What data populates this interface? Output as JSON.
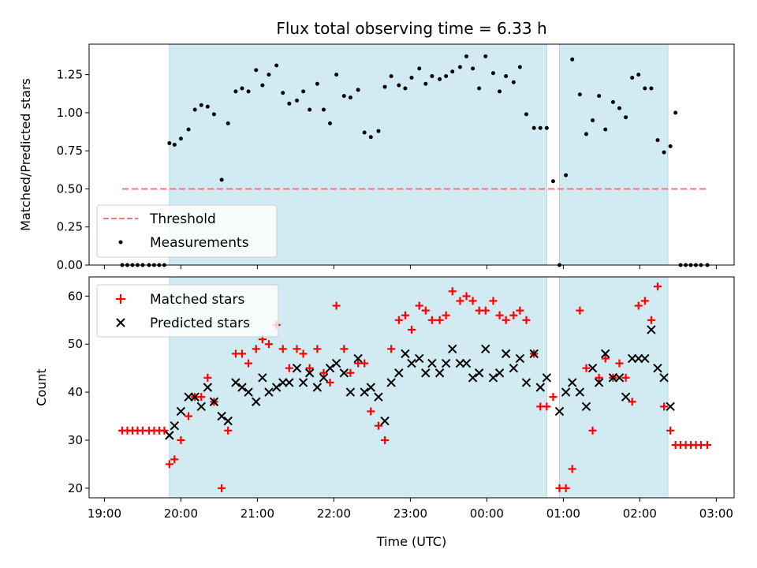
{
  "chart_data": {
    "title": "Flux total observing time = 6.33 h",
    "xlabel": "Time (UTC)",
    "x_ticks": [
      "19:00",
      "20:00",
      "21:00",
      "22:00",
      "23:00",
      "00:00",
      "01:00",
      "02:00",
      "03:00"
    ],
    "observing_windows": [
      [
        "19:51",
        "00:47"
      ],
      [
        "00:57",
        "02:22"
      ]
    ],
    "colors": {
      "window": "#add8e6",
      "threshold": "#ff7070",
      "measurement": "#000000",
      "matched": "#ff0000",
      "predicted": "#000000"
    },
    "panels": [
      {
        "id": "ratio",
        "type": "scatter",
        "ylabel": "Matched/Predicted stars",
        "ylim": [
          0,
          1.45
        ],
        "y_ticks": [
          "0.00",
          "0.25",
          "0.50",
          "0.75",
          "1.00",
          "1.25"
        ],
        "legend": {
          "position": "lower-left",
          "entries": [
            "Threshold",
            "Measurements"
          ]
        },
        "series": [
          {
            "name": "Threshold",
            "kind": "dashed-line",
            "x": [
              "19:14",
              "02:54"
            ],
            "y": [
              0.5,
              0.5
            ]
          },
          {
            "name": "Measurements",
            "kind": "dots",
            "x": [
              "19:14",
              "19:18",
              "19:22",
              "19:26",
              "19:30",
              "19:35",
              "19:39",
              "19:43",
              "19:47",
              "19:51",
              "19:55",
              "20:00",
              "20:06",
              "20:11",
              "20:16",
              "20:21",
              "20:26",
              "20:32",
              "20:37",
              "20:43",
              "20:48",
              "20:53",
              "20:59",
              "21:04",
              "21:09",
              "21:15",
              "21:20",
              "21:25",
              "21:31",
              "21:36",
              "21:41",
              "21:47",
              "21:52",
              "21:57",
              "22:02",
              "22:08",
              "22:13",
              "22:19",
              "22:24",
              "22:29",
              "22:35",
              "22:40",
              "22:45",
              "22:51",
              "22:56",
              "23:01",
              "23:07",
              "23:12",
              "23:17",
              "23:23",
              "23:28",
              "23:33",
              "23:39",
              "23:44",
              "23:49",
              "23:54",
              "23:59",
              "00:05",
              "00:10",
              "00:15",
              "00:21",
              "00:26",
              "00:31",
              "00:37",
              "00:42",
              "00:47",
              "00:52",
              "00:57",
              "01:02",
              "01:07",
              "01:13",
              "01:18",
              "01:23",
              "01:28",
              "01:33",
              "01:39",
              "01:44",
              "01:49",
              "01:54",
              "01:59",
              "02:04",
              "02:09",
              "02:14",
              "02:19",
              "02:24",
              "02:28",
              "02:32",
              "02:36",
              "02:40",
              "02:44",
              "02:48",
              "02:53"
            ],
            "y": [
              0,
              0,
              0,
              0,
              0,
              0,
              0,
              0,
              0,
              0.8,
              0.79,
              0.83,
              0.89,
              1.02,
              1.05,
              1.04,
              0.99,
              0.56,
              0.93,
              1.14,
              1.16,
              1.14,
              1.28,
              1.18,
              1.25,
              1.31,
              1.13,
              1.06,
              1.08,
              1.14,
              1.02,
              1.19,
              1.02,
              0.93,
              1.25,
              1.11,
              1.1,
              1.15,
              0.87,
              0.84,
              0.88,
              1.17,
              1.24,
              1.18,
              1.16,
              1.23,
              1.29,
              1.19,
              1.24,
              1.22,
              1.24,
              1.27,
              1.3,
              1.37,
              1.29,
              1.16,
              1.37,
              1.26,
              1.14,
              1.24,
              1.2,
              1.3,
              0.99,
              0.9,
              0.9,
              0.9,
              0.55,
              0,
              0.59,
              1.35,
              1.12,
              0.86,
              0.95,
              1.11,
              0.89,
              1.07,
              1.03,
              0.97,
              1.23,
              1.25,
              1.16,
              1.16,
              0.82,
              0.74,
              0.78,
              1.0,
              0,
              0,
              0,
              0,
              0,
              0
            ]
          }
        ]
      },
      {
        "id": "counts",
        "type": "scatter",
        "ylabel": "Count",
        "ylim": [
          18,
          64
        ],
        "y_ticks": [
          "20",
          "30",
          "40",
          "50",
          "60"
        ],
        "legend": {
          "position": "upper-left",
          "entries": [
            "Matched stars",
            "Predicted stars"
          ]
        },
        "series": [
          {
            "name": "Matched stars",
            "marker": "plus",
            "x": [
              "19:14",
              "19:18",
              "19:22",
              "19:26",
              "19:30",
              "19:35",
              "19:39",
              "19:43",
              "19:47",
              "19:51",
              "19:55",
              "20:00",
              "20:06",
              "20:11",
              "20:16",
              "20:21",
              "20:26",
              "20:32",
              "20:37",
              "20:43",
              "20:48",
              "20:53",
              "20:59",
              "21:04",
              "21:09",
              "21:15",
              "21:20",
              "21:25",
              "21:31",
              "21:36",
              "21:41",
              "21:47",
              "21:52",
              "21:57",
              "22:02",
              "22:08",
              "22:13",
              "22:19",
              "22:24",
              "22:29",
              "22:35",
              "22:40",
              "22:45",
              "22:51",
              "22:56",
              "23:01",
              "23:07",
              "23:12",
              "23:17",
              "23:23",
              "23:28",
              "23:33",
              "23:39",
              "23:44",
              "23:49",
              "23:54",
              "23:59",
              "00:05",
              "00:10",
              "00:15",
              "00:21",
              "00:26",
              "00:31",
              "00:37",
              "00:42",
              "00:47",
              "00:52",
              "00:57",
              "01:02",
              "01:07",
              "01:13",
              "01:18",
              "01:23",
              "01:28",
              "01:33",
              "01:39",
              "01:44",
              "01:49",
              "01:54",
              "01:59",
              "02:04",
              "02:09",
              "02:14",
              "02:19",
              "02:24",
              "02:28",
              "02:32",
              "02:36",
              "02:40",
              "02:44",
              "02:48",
              "02:53"
            ],
            "y": [
              32,
              32,
              32,
              32,
              32,
              32,
              32,
              32,
              32,
              25,
              26,
              30,
              35,
              39,
              39,
              43,
              38,
              20,
              32,
              48,
              48,
              46,
              49,
              51,
              50,
              54,
              49,
              45,
              49,
              48,
              45,
              49,
              44,
              42,
              58,
              49,
              44,
              46,
              46,
              36,
              33,
              30,
              49,
              55,
              56,
              53,
              58,
              57,
              55,
              55,
              56,
              61,
              59,
              60,
              59,
              57,
              57,
              59,
              56,
              55,
              56,
              57,
              55,
              48,
              37,
              37,
              39,
              20,
              20,
              24,
              57,
              45,
              32,
              43,
              47,
              43,
              46,
              43,
              38,
              58,
              59,
              55,
              62,
              37,
              32,
              29,
              29,
              29,
              29,
              29,
              29,
              29
            ]
          },
          {
            "name": "Predicted stars",
            "marker": "x",
            "x": [
              "19:51",
              "19:55",
              "20:00",
              "20:06",
              "20:11",
              "20:16",
              "20:21",
              "20:26",
              "20:32",
              "20:37",
              "20:43",
              "20:48",
              "20:53",
              "20:59",
              "21:04",
              "21:09",
              "21:15",
              "21:20",
              "21:25",
              "21:31",
              "21:36",
              "21:41",
              "21:47",
              "21:52",
              "21:57",
              "22:02",
              "22:08",
              "22:13",
              "22:19",
              "22:24",
              "22:29",
              "22:35",
              "22:40",
              "22:45",
              "22:51",
              "22:56",
              "23:01",
              "23:07",
              "23:12",
              "23:17",
              "23:23",
              "23:28",
              "23:33",
              "23:39",
              "23:44",
              "23:49",
              "23:54",
              "23:59",
              "00:05",
              "00:10",
              "00:15",
              "00:21",
              "00:26",
              "00:31",
              "00:37",
              "00:42",
              "00:47",
              "00:57",
              "01:02",
              "01:07",
              "01:13",
              "01:18",
              "01:23",
              "01:28",
              "01:33",
              "01:39",
              "01:44",
              "01:49",
              "01:54",
              "01:59",
              "02:04",
              "02:09",
              "02:14",
              "02:19",
              "02:24"
            ],
            "y": [
              31,
              33,
              36,
              39,
              39,
              37,
              41,
              38,
              35,
              34,
              42,
              41,
              40,
              38,
              43,
              40,
              41,
              42,
              42,
              45,
              42,
              44,
              41,
              43,
              45,
              46,
              44,
              40,
              47,
              40,
              41,
              39,
              34,
              42,
              44,
              48,
              46,
              47,
              44,
              46,
              44,
              46,
              49,
              46,
              46,
              43,
              44,
              49,
              43,
              44,
              48,
              45,
              47,
              42,
              48,
              41,
              43,
              36,
              40,
              42,
              40,
              37,
              45,
              42,
              48,
              43,
              43,
              39,
              47,
              47,
              47,
              53,
              45,
              43,
              37
            ]
          }
        ]
      }
    ]
  }
}
